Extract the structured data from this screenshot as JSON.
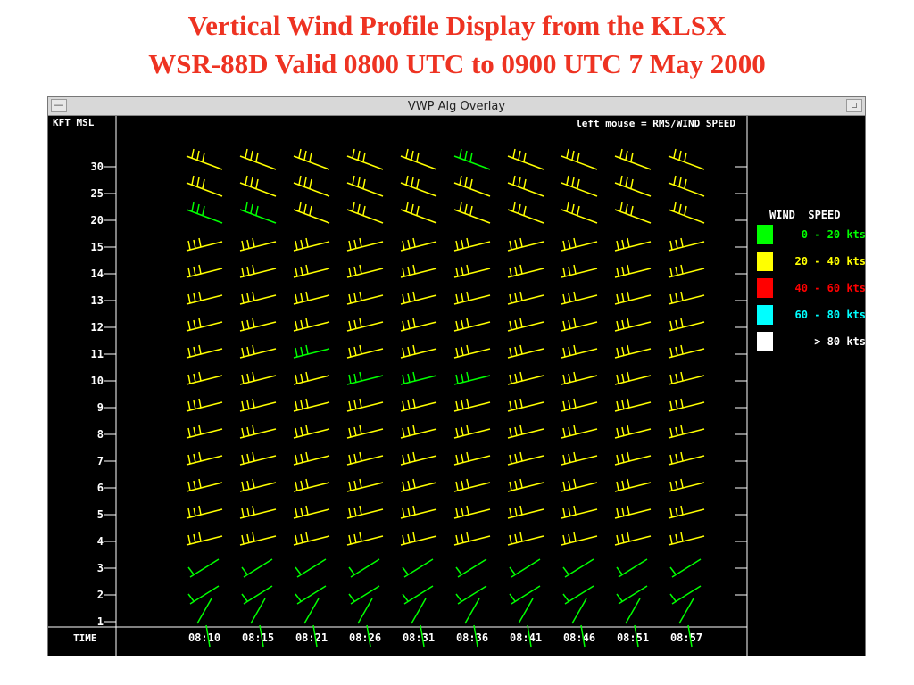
{
  "slide": {
    "title_line1": "Vertical Wind Profile Display from the KLSX",
    "title_line2": "WSR-88D Valid 0800 UTC to 0900 UTC 7 May 2000"
  },
  "window": {
    "title": "VWP Alg Overlay",
    "menu_button": "—",
    "maximize_button": "▫"
  },
  "plot": {
    "y_axis_label": "KFT MSL",
    "hint": "left mouse = RMS/WIND SPEED",
    "time_label": "TIME",
    "altitudes": [
      "30",
      "25",
      "20",
      "15",
      "14",
      "13",
      "12",
      "11",
      "10",
      "9",
      "8",
      "7",
      "6",
      "5",
      "4",
      "3",
      "2",
      "1"
    ],
    "times": [
      "08:10",
      "08:15",
      "08:21",
      "08:26",
      "08:31",
      "08:36",
      "08:41",
      "08:46",
      "08:51",
      "08:57"
    ]
  },
  "legend": {
    "title": "WIND  SPEED",
    "items": [
      {
        "label": "0 - 20 kts",
        "color": "#00ff00"
      },
      {
        "label": "20 - 40 kts",
        "color": "#ffff00"
      },
      {
        "label": "40 - 60 kts",
        "color": "#ff0000"
      },
      {
        "label": "60 - 80 kts",
        "color": "#00ffff"
      },
      {
        "label": "> 80 kts",
        "color": "#ffffff"
      }
    ]
  },
  "colors": {
    "green": "#00ff00",
    "yellow": "#ffff00",
    "red": "#ff0000",
    "cyan": "#00ffff",
    "white": "#ffffff"
  },
  "barbs": [
    [
      "y",
      "y",
      "y",
      "y",
      "y",
      "g",
      "y",
      "y",
      "y",
      "y"
    ],
    [
      "y",
      "y",
      "y",
      "y",
      "y",
      "y",
      "y",
      "y",
      "y",
      "y"
    ],
    [
      "g",
      "g",
      "y",
      "y",
      "y",
      "y",
      "y",
      "y",
      "y",
      "y"
    ],
    [
      "y",
      "y",
      "y",
      "y",
      "y",
      "y",
      "y",
      "y",
      "y",
      "y"
    ],
    [
      "y",
      "y",
      "y",
      "y",
      "y",
      "y",
      "y",
      "y",
      "y",
      "y"
    ],
    [
      "y",
      "y",
      "y",
      "y",
      "y",
      "y",
      "y",
      "y",
      "y",
      "y"
    ],
    [
      "y",
      "y",
      "y",
      "y",
      "y",
      "y",
      "y",
      "y",
      "y",
      "y"
    ],
    [
      "y",
      "y",
      "g",
      "y",
      "y",
      "y",
      "y",
      "y",
      "y",
      "y"
    ],
    [
      "y",
      "y",
      "y",
      "g",
      "g",
      "g",
      "y",
      "y",
      "y",
      "y"
    ],
    [
      "y",
      "y",
      "y",
      "y",
      "y",
      "y",
      "y",
      "y",
      "y",
      "y"
    ],
    [
      "y",
      "y",
      "y",
      "y",
      "y",
      "y",
      "y",
      "y",
      "y",
      "y"
    ],
    [
      "y",
      "y",
      "y",
      "y",
      "y",
      "y",
      "y",
      "y",
      "y",
      "y"
    ],
    [
      "y",
      "y",
      "y",
      "y",
      "y",
      "y",
      "y",
      "y",
      "y",
      "y"
    ],
    [
      "y",
      "y",
      "y",
      "y",
      "y",
      "y",
      "y",
      "y",
      "y",
      "y"
    ],
    [
      "y",
      "y",
      "y",
      "y",
      "y",
      "y",
      "y",
      "y",
      "y",
      "y"
    ],
    [
      "g",
      "g",
      "g",
      "g",
      "g",
      "g",
      "g",
      "g",
      "g",
      "g"
    ],
    [
      "g",
      "g",
      "g",
      "g",
      "g",
      "g",
      "g",
      "g",
      "g",
      "g"
    ],
    [
      "g",
      "g",
      "g",
      "g",
      "g",
      "g",
      "g",
      "g",
      "g",
      "g"
    ]
  ]
}
